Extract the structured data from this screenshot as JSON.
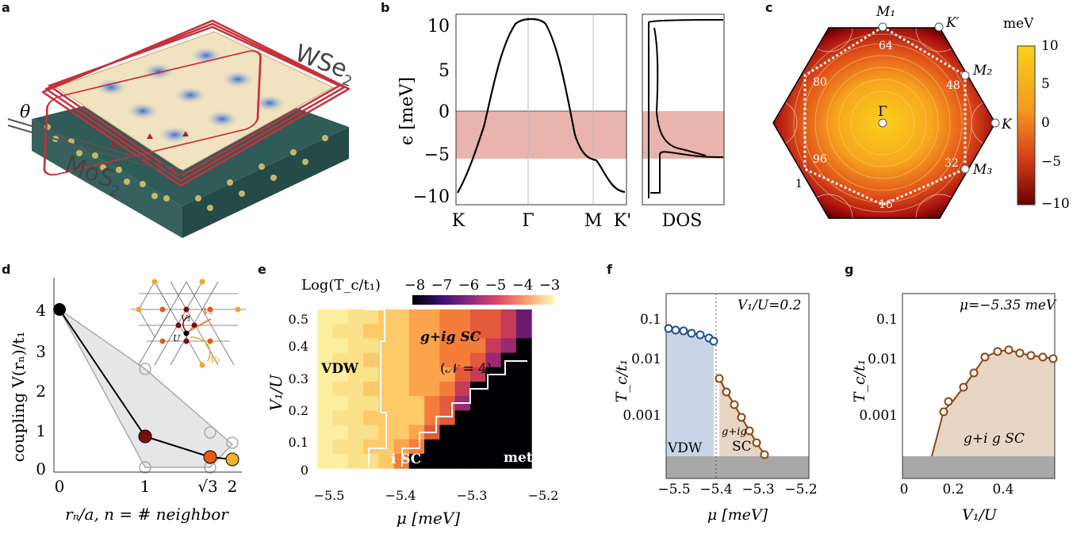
{
  "panels": {
    "a": {
      "label": "a",
      "wse2": "WSe",
      "wse2_sub": "2",
      "mos2": "MoS",
      "mos2_sub": "2",
      "theta": "θ"
    },
    "b": {
      "label": "b",
      "ylabel": "ϵ [meV]",
      "yticks": [
        "10",
        "5",
        "0",
        "−5",
        "−10"
      ],
      "xticks": [
        "K",
        "Γ",
        "M",
        "K'"
      ],
      "dos_label": "DOS"
    },
    "c": {
      "label": "c",
      "colorbar_title": "meV",
      "cb_ticks": [
        "10",
        "5",
        "0",
        "−5",
        "−10"
      ],
      "points": [
        "M₁",
        "K′",
        "M₂",
        "K",
        "M₃",
        "Γ"
      ],
      "contours": [
        "64",
        "48",
        "80",
        "32",
        "96",
        "16",
        "1"
      ]
    },
    "d": {
      "label": "d",
      "ylabel": "coupling V(rₙ)/t₁",
      "xlabel": "rₙ/a, n = # neighbor",
      "yticks": [
        "4",
        "3",
        "2",
        "1",
        "0"
      ],
      "xticks": [
        "0",
        "1",
        "√3",
        "2"
      ],
      "inset": [
        "V₁",
        "V₂",
        "V₃",
        "U"
      ]
    },
    "e": {
      "label": "e",
      "cb_title": "Log(T_c/t₁)",
      "cb_ticks": [
        "−8",
        "−7",
        "−6",
        "−5",
        "−4",
        "−3"
      ],
      "ylabel": "V₁/U",
      "xlabel": "μ [meV]",
      "yticks": [
        "0.5",
        "0.4",
        "0.3",
        "0.2",
        "0.1",
        "0"
      ],
      "xticks": [
        "−5.5",
        "−5.4",
        "−5.3",
        "−5.2"
      ],
      "regions": {
        "vdw": "VDW",
        "gig": "g+ig SC",
        "n4": "(𝒩 = 4)",
        "isc": "i SC",
        "metal": "metal"
      }
    },
    "f": {
      "label": "f",
      "ylabel": "T_c/t₁",
      "xlabel": "μ [meV]",
      "annot": "V₁/U=0.2",
      "yticks": [
        "0.1",
        "0.01",
        "0.001"
      ],
      "xticks": [
        "−5.5",
        "−5.4",
        "−5.3",
        "−5.2"
      ],
      "vdw": "VDW",
      "gig": "g+ig",
      "sc": "SC"
    },
    "g": {
      "label": "g",
      "ylabel": "T_c/t₁",
      "xlabel": "V₁/U",
      "annot": "μ=−5.35 meV",
      "yticks": [
        "0.1",
        "0.01",
        "0.001"
      ],
      "xticks": [
        "0",
        "0.2",
        "0.4"
      ],
      "sc": "g+i g SC"
    }
  },
  "colors": {
    "band_shade": "#e8b4ad",
    "vdw_fill": "#c9d5e6",
    "sc_fill": "#e8d6c5",
    "blue_marker": "#1f4e8c",
    "brown_marker": "#8b4513",
    "gray_bar": "#a8a8a8"
  }
}
